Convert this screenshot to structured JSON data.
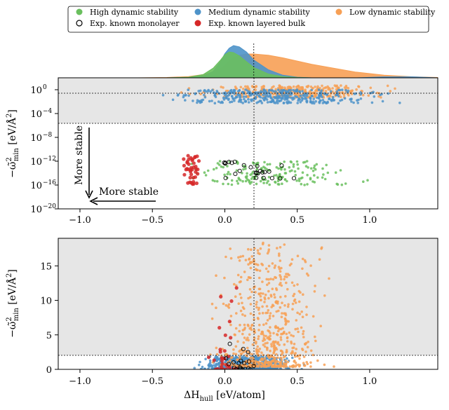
{
  "chart_data": [
    {
      "type": "scatter",
      "legend": {
        "placement": "top",
        "entries": [
          {
            "label": "High dynamic stability",
            "color": "#6abf5e",
            "marker": "filled-circle"
          },
          {
            "label": "Medium dynamic stability",
            "color": "#4e93c9",
            "marker": "filled-circle"
          },
          {
            "label": "Low dynamic stability",
            "color": "#f7a055",
            "marker": "filled-circle"
          },
          {
            "label": "Exp. known monolayer",
            "color": "#000000",
            "marker": "open-circle"
          },
          {
            "label": "Exp. known layered bulk",
            "color": "#d62728",
            "marker": "filled-circle"
          }
        ]
      }
    },
    {
      "type": "area",
      "panel": "marginal density of ΔH_hull",
      "xlim": [
        -1.15,
        1.47
      ],
      "x": [
        -1.15,
        -0.6,
        -0.4,
        -0.25,
        -0.15,
        -0.08,
        -0.03,
        0.0,
        0.03,
        0.06,
        0.1,
        0.15,
        0.2,
        0.3,
        0.4,
        0.5,
        0.6,
        0.75,
        0.9,
        1.1,
        1.3,
        1.47
      ],
      "series": [
        {
          "name": "Low dynamic stability",
          "color": "#f7a055",
          "values": [
            0.0,
            0.0,
            0.01,
            0.04,
            0.1,
            0.18,
            0.28,
            0.38,
            0.52,
            0.62,
            0.7,
            0.74,
            0.74,
            0.7,
            0.62,
            0.52,
            0.42,
            0.3,
            0.18,
            0.08,
            0.03,
            0.01
          ]
        },
        {
          "name": "Medium dynamic stability",
          "color": "#4e93c9",
          "values": [
            0.0,
            0.0,
            0.0,
            0.01,
            0.05,
            0.2,
            0.5,
            0.75,
            0.92,
            1.0,
            0.96,
            0.8,
            0.55,
            0.25,
            0.08,
            0.02,
            0.0,
            0.0,
            0.0,
            0.03,
            0.03,
            0.0
          ]
        },
        {
          "name": "High dynamic stability",
          "color": "#6abf5e",
          "values": [
            0.0,
            0.0,
            0.0,
            0.02,
            0.1,
            0.3,
            0.55,
            0.72,
            0.8,
            0.78,
            0.68,
            0.5,
            0.32,
            0.12,
            0.04,
            0.01,
            0.0,
            0.0,
            0.0,
            0.0,
            0.0,
            0.0
          ]
        }
      ],
      "reference_x": 0.2
    },
    {
      "type": "scatter",
      "panel": "log-scale",
      "xlim": [
        -1.15,
        1.47
      ],
      "ylim": [
        1e-20,
        100.0
      ],
      "y_scale": "log",
      "xticks": [
        -1.0,
        -0.5,
        0.0,
        0.5,
        1.0
      ],
      "xtick_labels": [
        "−1.0",
        "−0.5",
        "0.0",
        "0.5",
        "1.0"
      ],
      "yticks": [
        1.0,
        0.0001,
        1e-08,
        1e-12,
        1e-16,
        1e-20
      ],
      "ytick_labels": [
        "10",
        "10",
        "10",
        "10",
        "10",
        "10"
      ],
      "ytick_exponents": [
        "0",
        "−4",
        "−8",
        "−12",
        "−16",
        "−20"
      ],
      "ylabel": "−ω̃²min [eV/Å²]",
      "shaded_band": [
        0.0017,
        100
      ],
      "hlines": [
        10,
        0.0017
      ],
      "vline": 0.2,
      "annotations": [
        {
          "text": "More stable",
          "direction": "down"
        },
        {
          "text": "More stable",
          "direction": "left"
        }
      ],
      "series": [
        {
          "name": "Low dynamic stability",
          "color": "#f7a055",
          "n": 320,
          "x_range": [
            -0.3,
            1.45
          ],
          "y_range": [
            0.05,
            5
          ]
        },
        {
          "name": "Medium dynamic stability",
          "color": "#4e93c9",
          "n": 380,
          "x_range": [
            -0.6,
            1.45
          ],
          "y_range": [
            0.005,
            1
          ]
        },
        {
          "name": "High dynamic stability",
          "color": "#6abf5e",
          "n": 180,
          "x_range": [
            -0.3,
            1.1
          ],
          "y_range": [
            1e-16,
            1e-12
          ]
        },
        {
          "name": "Exp. known layered bulk",
          "color": "#d62728",
          "n": 40,
          "x_range": [
            -0.5,
            0.1
          ],
          "y_range": [
            1e-16,
            1e-11
          ]
        },
        {
          "name": "Exp. known monolayer",
          "color": "#000000",
          "n": 25,
          "x_range": [
            -0.2,
            0.65
          ],
          "y_range": [
            1e-15,
            1e-12
          ]
        }
      ]
    },
    {
      "type": "scatter",
      "panel": "linear-scale",
      "xlim": [
        -1.15,
        1.47
      ],
      "ylim": [
        0,
        19
      ],
      "xticks": [
        -1.0,
        -0.5,
        0.0,
        0.5,
        1.0
      ],
      "xtick_labels": [
        "−1.0",
        "−0.5",
        "0.0",
        "0.5",
        "1.0"
      ],
      "yticks": [
        0,
        5,
        10,
        15
      ],
      "ytick_labels": [
        "0",
        "5",
        "10",
        "15"
      ],
      "xlabel": "ΔHhull [eV/atom]",
      "ylabel": "−ω̃²min [eV/Å²]",
      "shaded_band": [
        2,
        19
      ],
      "hline": 2,
      "vline": 0.2,
      "series": [
        {
          "name": "Medium dynamic stability",
          "color": "#4e93c9",
          "n": 700,
          "x_range": [
            -0.6,
            1.45
          ],
          "y_range": [
            0.0,
            1.9
          ]
        },
        {
          "name": "Low dynamic stability",
          "color": "#f7a055",
          "n": 650,
          "x_range": [
            -0.35,
            1.45
          ],
          "y_range": [
            0.0,
            19
          ]
        },
        {
          "name": "Exp. known layered bulk",
          "color": "#d62728",
          "n": 30,
          "x_range": [
            -0.3,
            0.3
          ],
          "y_range": [
            0.0,
            12
          ]
        },
        {
          "name": "Exp. known monolayer",
          "color": "#000000",
          "n": 20,
          "x_range": [
            -0.05,
            0.5
          ],
          "y_range": [
            0.0,
            4.5
          ]
        }
      ]
    }
  ]
}
